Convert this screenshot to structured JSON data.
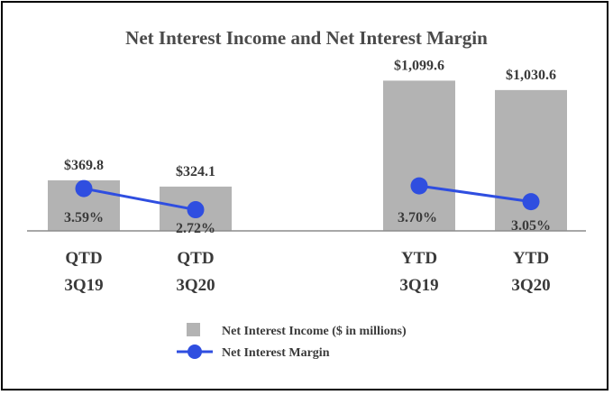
{
  "chart_data": {
    "type": "bar",
    "title": "Net Interest Income and Net Interest Margin",
    "categories": [
      [
        "QTD",
        "3Q19"
      ],
      [
        "QTD",
        "3Q20"
      ],
      [
        "YTD",
        "3Q19"
      ],
      [
        "YTD",
        "3Q20"
      ]
    ],
    "series": [
      {
        "name": "Net Interest Income ($ in millions)",
        "type": "bar",
        "color": "#b3b3b3",
        "values": [
          369.8,
          324.1,
          1099.6,
          1030.6
        ],
        "labels": [
          "$369.8",
          "$324.1",
          "$1,099.6",
          "$1,030.6"
        ]
      },
      {
        "name": "Net Interest Margin",
        "type": "line",
        "color": "#2f4ee0",
        "values": [
          3.59,
          2.72,
          3.7,
          3.05
        ],
        "labels": [
          "3.59%",
          "2.72%",
          "3.70%",
          "3.05%"
        ],
        "segments": [
          [
            0,
            1
          ],
          [
            2,
            3
          ]
        ]
      }
    ],
    "legend_position": "bottom",
    "grid": false
  }
}
